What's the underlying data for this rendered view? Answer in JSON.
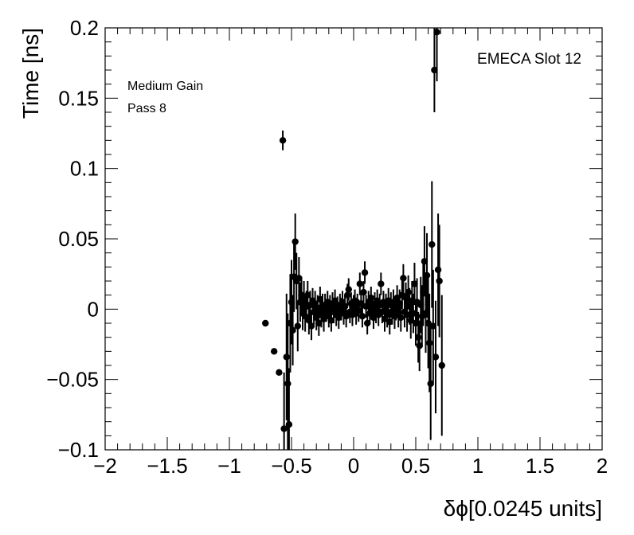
{
  "chart_data": {
    "type": "scatter",
    "xlabel": "δϕ[0.0245 units]",
    "ylabel": "Time [ns]",
    "xlim": [
      -2,
      2
    ],
    "ylim": [
      -0.1,
      0.2
    ],
    "x_ticks": [
      "−2",
      "−1.5",
      "−1",
      "−0.5",
      "0",
      "0.5",
      "1",
      "1.5",
      "2"
    ],
    "y_ticks": [
      "−0.1",
      "−0.05",
      "0",
      "0.05",
      "0.1",
      "0.15",
      "0.2"
    ],
    "annotations": {
      "slot": "EMECA Slot 12",
      "gain": "Medium Gain",
      "pass": "Pass 8"
    },
    "grid": false,
    "series": [
      {
        "points": [
          {
            "x": -0.71,
            "y": -0.01,
            "err": 0.0
          },
          {
            "x": -0.64,
            "y": -0.03,
            "err": 0.0
          },
          {
            "x": -0.6,
            "y": -0.045,
            "err": 0.0
          },
          {
            "x": -0.57,
            "y": 0.12,
            "err": 0.007
          },
          {
            "x": -0.56,
            "y": -0.085,
            "err": 0.04
          },
          {
            "x": -0.54,
            "y": -0.034,
            "err": 0.045
          },
          {
            "x": -0.53,
            "y": -0.053,
            "err": 0.05
          },
          {
            "x": -0.52,
            "y": -0.082,
            "err": 0.04
          },
          {
            "x": -0.51,
            "y": -0.01,
            "err": 0.035
          },
          {
            "x": -0.5,
            "y": 0.005,
            "err": 0.03
          },
          {
            "x": -0.49,
            "y": -0.015,
            "err": 0.025
          },
          {
            "x": -0.48,
            "y": 0.023,
            "err": 0.025
          },
          {
            "x": -0.47,
            "y": 0.048,
            "err": 0.02
          },
          {
            "x": -0.46,
            "y": 0.02,
            "err": 0.02
          },
          {
            "x": -0.45,
            "y": -0.012,
            "err": 0.018
          },
          {
            "x": -0.44,
            "y": 0.022,
            "err": 0.015
          },
          {
            "x": -0.43,
            "y": 0.005,
            "err": 0.014
          },
          {
            "x": -0.42,
            "y": 0.01,
            "err": 0.013
          },
          {
            "x": -0.41,
            "y": -0.003,
            "err": 0.012
          },
          {
            "x": -0.4,
            "y": 0.008,
            "err": 0.012
          },
          {
            "x": -0.39,
            "y": -0.005,
            "err": 0.011
          },
          {
            "x": -0.38,
            "y": 0.002,
            "err": 0.011
          },
          {
            "x": -0.37,
            "y": 0.01,
            "err": 0.01
          },
          {
            "x": -0.36,
            "y": -0.008,
            "err": 0.01
          },
          {
            "x": -0.35,
            "y": 0.003,
            "err": 0.01
          },
          {
            "x": -0.34,
            "y": -0.012,
            "err": 0.01
          },
          {
            "x": -0.33,
            "y": 0.006,
            "err": 0.009
          },
          {
            "x": -0.32,
            "y": -0.002,
            "err": 0.009
          },
          {
            "x": -0.31,
            "y": 0.004,
            "err": 0.009
          },
          {
            "x": -0.3,
            "y": -0.006,
            "err": 0.009
          },
          {
            "x": -0.29,
            "y": 0.001,
            "err": 0.009
          },
          {
            "x": -0.28,
            "y": -0.01,
            "err": 0.009
          },
          {
            "x": -0.27,
            "y": 0.007,
            "err": 0.009
          },
          {
            "x": -0.26,
            "y": -0.004,
            "err": 0.009
          },
          {
            "x": -0.25,
            "y": 0.002,
            "err": 0.009
          },
          {
            "x": -0.24,
            "y": -0.007,
            "err": 0.009
          },
          {
            "x": -0.23,
            "y": 0.003,
            "err": 0.008
          },
          {
            "x": -0.22,
            "y": -0.001,
            "err": 0.008
          },
          {
            "x": -0.21,
            "y": 0.005,
            "err": 0.008
          },
          {
            "x": -0.2,
            "y": -0.005,
            "err": 0.008
          },
          {
            "x": -0.19,
            "y": 0.002,
            "err": 0.008
          },
          {
            "x": -0.18,
            "y": -0.008,
            "err": 0.008
          },
          {
            "x": -0.17,
            "y": 0.004,
            "err": 0.008
          },
          {
            "x": -0.16,
            "y": -0.002,
            "err": 0.008
          },
          {
            "x": -0.15,
            "y": 0.006,
            "err": 0.008
          },
          {
            "x": -0.14,
            "y": -0.004,
            "err": 0.008
          },
          {
            "x": -0.13,
            "y": 0.001,
            "err": 0.008
          },
          {
            "x": -0.12,
            "y": -0.006,
            "err": 0.008
          },
          {
            "x": -0.11,
            "y": 0.003,
            "err": 0.008
          },
          {
            "x": -0.1,
            "y": 0.0,
            "err": 0.008
          },
          {
            "x": -0.09,
            "y": 0.005,
            "err": 0.008
          },
          {
            "x": -0.08,
            "y": -0.003,
            "err": 0.008
          },
          {
            "x": -0.07,
            "y": 0.002,
            "err": 0.008
          },
          {
            "x": -0.06,
            "y": -0.005,
            "err": 0.008
          },
          {
            "x": -0.05,
            "y": 0.01,
            "err": 0.008
          },
          {
            "x": -0.04,
            "y": 0.014,
            "err": 0.008
          },
          {
            "x": -0.03,
            "y": -0.002,
            "err": 0.008
          },
          {
            "x": -0.02,
            "y": 0.004,
            "err": 0.008
          },
          {
            "x": -0.01,
            "y": -0.004,
            "err": 0.008
          },
          {
            "x": 0.0,
            "y": 0.002,
            "err": 0.008
          },
          {
            "x": 0.01,
            "y": 0.006,
            "err": 0.008
          },
          {
            "x": 0.02,
            "y": -0.003,
            "err": 0.008
          },
          {
            "x": 0.03,
            "y": 0.003,
            "err": 0.008
          },
          {
            "x": 0.04,
            "y": -0.001,
            "err": 0.008
          },
          {
            "x": 0.05,
            "y": 0.018,
            "err": 0.008
          },
          {
            "x": 0.06,
            "y": 0.004,
            "err": 0.008
          },
          {
            "x": 0.07,
            "y": -0.005,
            "err": 0.008
          },
          {
            "x": 0.08,
            "y": 0.012,
            "err": 0.008
          },
          {
            "x": 0.09,
            "y": 0.026,
            "err": 0.008
          },
          {
            "x": 0.1,
            "y": 0.002,
            "err": 0.008
          },
          {
            "x": 0.11,
            "y": -0.01,
            "err": 0.008
          },
          {
            "x": 0.12,
            "y": 0.005,
            "err": 0.008
          },
          {
            "x": 0.13,
            "y": -0.003,
            "err": 0.008
          },
          {
            "x": 0.14,
            "y": 0.008,
            "err": 0.008
          },
          {
            "x": 0.15,
            "y": 0.001,
            "err": 0.008
          },
          {
            "x": 0.16,
            "y": -0.006,
            "err": 0.008
          },
          {
            "x": 0.17,
            "y": 0.004,
            "err": 0.008
          },
          {
            "x": 0.18,
            "y": -0.002,
            "err": 0.008
          },
          {
            "x": 0.19,
            "y": 0.006,
            "err": 0.008
          },
          {
            "x": 0.2,
            "y": -0.004,
            "err": 0.008
          },
          {
            "x": 0.21,
            "y": 0.003,
            "err": 0.008
          },
          {
            "x": 0.22,
            "y": 0.018,
            "err": 0.008
          },
          {
            "x": 0.23,
            "y": -0.002,
            "err": 0.008
          },
          {
            "x": 0.24,
            "y": 0.005,
            "err": 0.008
          },
          {
            "x": 0.25,
            "y": -0.007,
            "err": 0.009
          },
          {
            "x": 0.26,
            "y": 0.002,
            "err": 0.009
          },
          {
            "x": 0.27,
            "y": -0.004,
            "err": 0.009
          },
          {
            "x": 0.28,
            "y": 0.006,
            "err": 0.009
          },
          {
            "x": 0.29,
            "y": -0.009,
            "err": 0.009
          },
          {
            "x": 0.3,
            "y": 0.003,
            "err": 0.009
          },
          {
            "x": 0.31,
            "y": -0.002,
            "err": 0.009
          },
          {
            "x": 0.32,
            "y": 0.005,
            "err": 0.009
          },
          {
            "x": 0.33,
            "y": -0.005,
            "err": 0.009
          },
          {
            "x": 0.34,
            "y": 0.001,
            "err": 0.009
          },
          {
            "x": 0.35,
            "y": 0.008,
            "err": 0.009
          },
          {
            "x": 0.36,
            "y": -0.003,
            "err": 0.01
          },
          {
            "x": 0.37,
            "y": 0.004,
            "err": 0.01
          },
          {
            "x": 0.38,
            "y": -0.006,
            "err": 0.01
          },
          {
            "x": 0.39,
            "y": 0.01,
            "err": 0.01
          },
          {
            "x": 0.4,
            "y": 0.022,
            "err": 0.01
          },
          {
            "x": 0.41,
            "y": -0.002,
            "err": 0.011
          },
          {
            "x": 0.42,
            "y": 0.008,
            "err": 0.011
          },
          {
            "x": 0.43,
            "y": -0.004,
            "err": 0.012
          },
          {
            "x": 0.44,
            "y": 0.012,
            "err": 0.012
          },
          {
            "x": 0.45,
            "y": 0.002,
            "err": 0.013
          },
          {
            "x": 0.46,
            "y": -0.008,
            "err": 0.013
          },
          {
            "x": 0.47,
            "y": 0.006,
            "err": 0.014
          },
          {
            "x": 0.48,
            "y": -0.003,
            "err": 0.014
          },
          {
            "x": 0.49,
            "y": 0.018,
            "err": 0.015
          },
          {
            "x": 0.5,
            "y": -0.01,
            "err": 0.016
          },
          {
            "x": 0.51,
            "y": 0.005,
            "err": 0.017
          },
          {
            "x": 0.52,
            "y": -0.02,
            "err": 0.018
          },
          {
            "x": 0.53,
            "y": -0.026,
            "err": 0.018
          },
          {
            "x": 0.54,
            "y": 0.003,
            "err": 0.02
          },
          {
            "x": 0.55,
            "y": -0.005,
            "err": 0.022
          },
          {
            "x": 0.56,
            "y": 0.012,
            "err": 0.024
          },
          {
            "x": 0.57,
            "y": 0.034,
            "err": 0.025
          },
          {
            "x": 0.58,
            "y": -0.003,
            "err": 0.028
          },
          {
            "x": 0.59,
            "y": 0.024,
            "err": 0.03
          },
          {
            "x": 0.6,
            "y": -0.01,
            "err": 0.032
          },
          {
            "x": 0.61,
            "y": -0.024,
            "err": 0.035
          },
          {
            "x": 0.62,
            "y": -0.053,
            "err": 0.04
          },
          {
            "x": 0.63,
            "y": 0.046,
            "err": 0.045
          },
          {
            "x": 0.64,
            "y": -0.012,
            "err": 0.04
          },
          {
            "x": 0.65,
            "y": 0.17,
            "err": 0.03
          },
          {
            "x": 0.66,
            "y": -0.034,
            "err": 0.04
          },
          {
            "x": 0.67,
            "y": 0.197,
            "err": 0.035
          },
          {
            "x": 0.68,
            "y": 0.028,
            "err": 0.04
          },
          {
            "x": 0.69,
            "y": 0.02,
            "err": 0.04
          },
          {
            "x": 0.71,
            "y": -0.04,
            "err": 0.05
          }
        ]
      }
    ]
  }
}
